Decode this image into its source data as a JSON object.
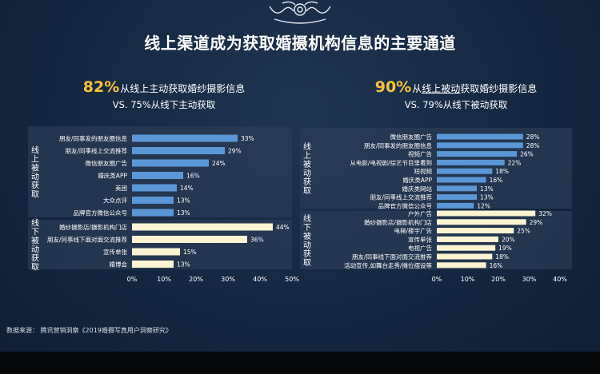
{
  "title": "线上渠道成为获取婚摄机构信息的主要通道",
  "left_headline": {
    "percent": "82%",
    "text": "从线上主动获取婚纱摄影信息",
    "sub": "VS. 75%从线下主动获取"
  },
  "right_headline": {
    "percent": "90%",
    "text_prefix": "从",
    "text_underlined": "线上被动",
    "text_suffix": "获取婚纱摄影信息",
    "sub": "VS. 79%从线下被动获取"
  },
  "source": "数据来源：  腾讯营销洞察《2019婚摄写真用户洞察研究》",
  "colors": {
    "online_bar": "#5b97d6",
    "offline_bar": "#fbf4d2",
    "panel": "#2a3b54"
  },
  "chart_data": [
    {
      "type": "bar",
      "orientation": "horizontal",
      "groups": [
        {
          "name": "线上被动获取",
          "categories": [
            "朋友/同事发的朋友圈信息",
            "朋友/同事线上交流推荐",
            "微信朋友圈广告",
            "婚庆类APP",
            "美团",
            "大众点评",
            "品牌官方微信公众号"
          ],
          "values": [
            33,
            29,
            24,
            16,
            14,
            13,
            13
          ],
          "labels": [
            "33%",
            "29%",
            "24%",
            "16%",
            "14%",
            "13%",
            "13%"
          ]
        },
        {
          "name": "线下被动获取",
          "categories": [
            "婚纱摄影店/摄影机构门店",
            "朋友/同事线下面对面交流推荐",
            "宣传单张",
            "婚博会"
          ],
          "values": [
            44,
            36,
            15,
            13
          ],
          "labels": [
            "44%",
            "36%",
            "15%",
            "13%"
          ]
        }
      ],
      "xlim": [
        0,
        50
      ],
      "xticks": [
        "0%",
        "10%",
        "20%",
        "30%",
        "40%",
        "50%"
      ]
    },
    {
      "type": "bar",
      "orientation": "horizontal",
      "groups": [
        {
          "name": "线上被动获取",
          "categories": [
            "微信朋友圈广告",
            "朋友/同事发的朋友圈信息",
            "视频广告",
            "从电影/电视剧/综艺节目里看到",
            "短视频",
            "婚庆类APP",
            "婚庆类网站",
            "朋友/同事线上交流推荐",
            "品牌官方微信公众号"
          ],
          "values": [
            28,
            28,
            26,
            22,
            18,
            16,
            13,
            13,
            12
          ],
          "labels": [
            "28%",
            "28%",
            "26%",
            "22%",
            "18%",
            "16%",
            "13%",
            "13%",
            "12%"
          ]
        },
        {
          "name": "线下被动获取",
          "categories": [
            "户外广告",
            "婚纱摄影店/摄影机构门店",
            "电梯/楼宇广告",
            "宣传单张",
            "电视广告",
            "朋友/同事线下面对面交流推荐",
            "活动宣传,如舞台走秀/摊位摆设等"
          ],
          "values": [
            32,
            29,
            25,
            20,
            19,
            18,
            16
          ],
          "labels": [
            "32%",
            "29%",
            "25%",
            "20%",
            "19%",
            "18%",
            "16%"
          ]
        }
      ],
      "xlim": [
        0,
        40
      ],
      "xticks": [
        "0%",
        "10%",
        "20%",
        "30%",
        "40%"
      ]
    }
  ]
}
